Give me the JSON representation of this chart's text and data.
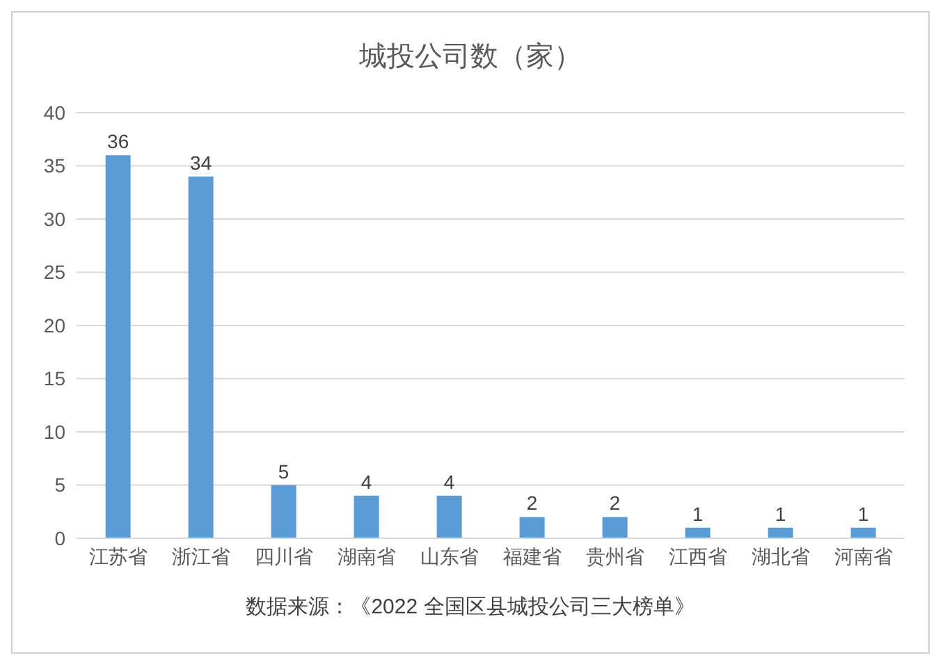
{
  "chart_data": {
    "type": "bar",
    "title": "城投公司数（家）",
    "categories": [
      "江苏省",
      "浙江省",
      "四川省",
      "湖南省",
      "山东省",
      "福建省",
      "贵州省",
      "江西省",
      "湖北省",
      "河南省"
    ],
    "values": [
      36,
      34,
      5,
      4,
      4,
      2,
      2,
      1,
      1,
      1
    ],
    "color": "#5b9bd5",
    "ylim": [
      0,
      40
    ],
    "yticks": [
      0,
      5,
      10,
      15,
      20,
      25,
      30,
      35,
      40
    ],
    "grid": "y",
    "data_labels": true,
    "annotations": [
      "数据来源：《2022 全国区县城投公司三大榜单》"
    ]
  }
}
